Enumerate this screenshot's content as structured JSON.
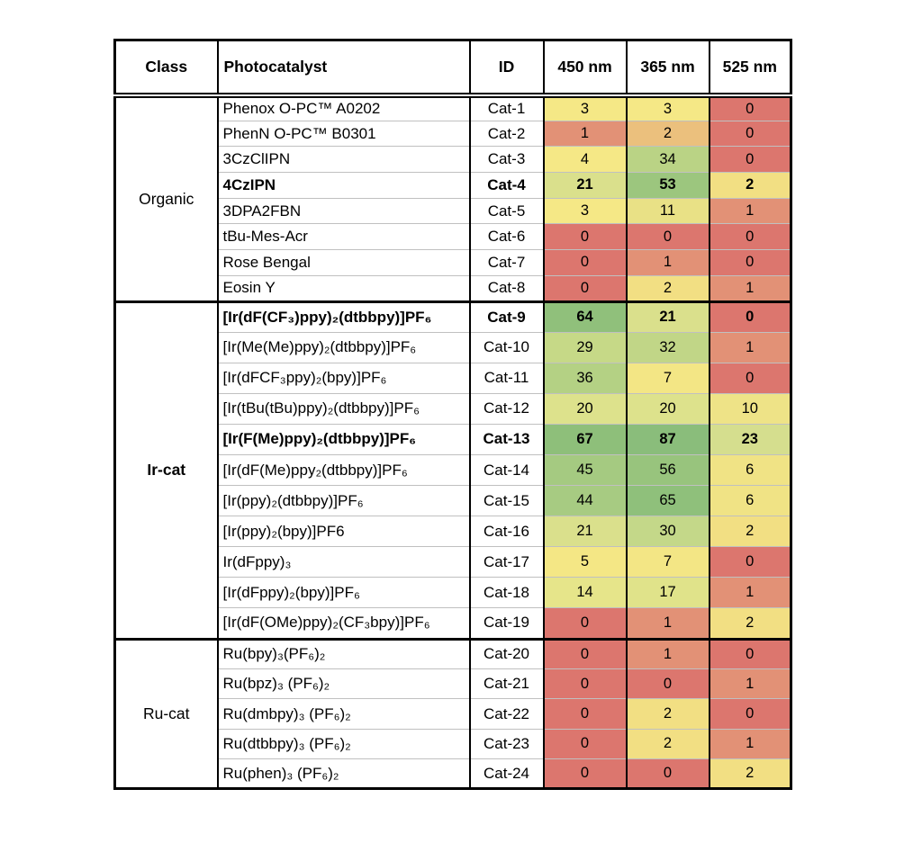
{
  "chart_data": {
    "type": "heatmap",
    "headers": [
      "Class",
      "Photocatalyst",
      "ID",
      "450 nm",
      "365 nm",
      "525 nm"
    ],
    "value_columns": [
      "450 nm",
      "365 nm",
      "525 nm"
    ],
    "color_scale": {
      "domain_min": 0,
      "domain_max": 87,
      "min_color": "#DC766E",
      "mid_color": "#F5E886",
      "max_color": "#8ABD7B"
    },
    "sections": [
      {
        "class": "Organic",
        "rows": [
          {
            "photocatalyst": "Phenox O-PC™ A0202",
            "id": "Cat-1",
            "values": [
              3,
              3,
              0
            ],
            "colors": [
              "#F5E886",
              "#F5E886",
              "#DC766E"
            ],
            "bold": false
          },
          {
            "photocatalyst": "PhenN O-PC™ B0301",
            "id": "Cat-2",
            "values": [
              1,
              2,
              0
            ],
            "colors": [
              "#E29176",
              "#EBC07D",
              "#DC766E"
            ],
            "bold": false
          },
          {
            "photocatalyst": "3CzClIPN",
            "id": "Cat-3",
            "values": [
              4,
              34,
              0
            ],
            "colors": [
              "#F5E886",
              "#BAD385",
              "#DC766E"
            ],
            "bold": false
          },
          {
            "photocatalyst": "4CzIPN",
            "id": "Cat-4",
            "values": [
              21,
              53,
              2
            ],
            "colors": [
              "#DAE08C",
              "#9CC67E",
              "#F2DF83"
            ],
            "bold": true
          },
          {
            "photocatalyst": "3DPA2FBN",
            "id": "Cat-5",
            "values": [
              3,
              11,
              1
            ],
            "colors": [
              "#F5E886",
              "#E9E186",
              "#E29176"
            ],
            "bold": false
          },
          {
            "photocatalyst": "tBu-Mes-Acr",
            "id": "Cat-6",
            "values": [
              0,
              0,
              0
            ],
            "colors": [
              "#DC766E",
              "#DC766E",
              "#DC766E"
            ],
            "bold": false
          },
          {
            "photocatalyst": "Rose Bengal",
            "id": "Cat-7",
            "values": [
              0,
              1,
              0
            ],
            "colors": [
              "#DC766E",
              "#E29176",
              "#DC766E"
            ],
            "bold": false
          },
          {
            "photocatalyst": "Eosin Y",
            "id": "Cat-8",
            "values": [
              0,
              2,
              1
            ],
            "colors": [
              "#DC766E",
              "#F2DF83",
              "#E29176"
            ],
            "bold": false
          }
        ]
      },
      {
        "class": "Ir-cat",
        "rows": [
          {
            "photocatalyst": "[Ir(dF(CF₃)ppy)₂(dtbbpy)]PF₆",
            "id": "Cat-9",
            "values": [
              64,
              21,
              0
            ],
            "colors": [
              "#90C07B",
              "#DAE08C",
              "#DC766E"
            ],
            "bold": true
          },
          {
            "photocatalyst": "[Ir(Me(Me)ppy)₂(dtbbpy)]PF₆",
            "id": "Cat-10",
            "values": [
              29,
              32,
              1
            ],
            "colors": [
              "#C6D987",
              "#C1D687",
              "#E29176"
            ],
            "bold": false
          },
          {
            "photocatalyst": "[Ir(dFCF₃ppy)₂(bpy)]PF₆",
            "id": "Cat-11",
            "values": [
              36,
              7,
              0
            ],
            "colors": [
              "#B4D184",
              "#F3E685",
              "#DC766E"
            ],
            "bold": false
          },
          {
            "photocatalyst": "[Ir(tBu(tBu)ppy)₂(dtbbpy)]PF₆",
            "id": "Cat-12",
            "values": [
              20,
              20,
              10
            ],
            "colors": [
              "#DDE28C",
              "#DDE28C",
              "#EEE387"
            ],
            "bold": false
          },
          {
            "photocatalyst": "[Ir(F(Me)ppy)₂(dtbbpy)]PF₆",
            "id": "Cat-13",
            "values": [
              67,
              87,
              23
            ],
            "colors": [
              "#8EBF7A",
              "#8ABD7B",
              "#D5DE8E"
            ],
            "bold": true
          },
          {
            "photocatalyst": "[Ir(dF(Me)ppy₂(dtbbpy)]PF₆",
            "id": "Cat-14",
            "values": [
              45,
              56,
              6
            ],
            "colors": [
              "#A5CA81",
              "#98C47D",
              "#F0E385"
            ],
            "bold": false
          },
          {
            "photocatalyst": "[Ir(ppy)₂(dtbbpy)]PF₆",
            "id": "Cat-15",
            "values": [
              44,
              65,
              6
            ],
            "colors": [
              "#A7CB82",
              "#8FC07B",
              "#F0E385"
            ],
            "bold": false
          },
          {
            "photocatalyst": "[Ir(ppy)₂(bpy)]PF6",
            "id": "Cat-16",
            "values": [
              21,
              30,
              2
            ],
            "colors": [
              "#DAE08C",
              "#C4D889",
              "#F2DF83"
            ],
            "bold": false
          },
          {
            "photocatalyst": "Ir(dFppy)₃",
            "id": "Cat-17",
            "values": [
              5,
              7,
              0
            ],
            "colors": [
              "#F4E785",
              "#F3E685",
              "#DC766E"
            ],
            "bold": false
          },
          {
            "photocatalyst": "[Ir(dFppy)₂(bpy)]PF₆",
            "id": "Cat-18",
            "values": [
              14,
              17,
              1
            ],
            "colors": [
              "#E6E58A",
              "#E0E38A",
              "#E29176"
            ],
            "bold": false
          },
          {
            "photocatalyst": "[Ir(dF(OMe)ppy)₂(CF₃bpy)]PF₆",
            "id": "Cat-19",
            "values": [
              0,
              1,
              2
            ],
            "colors": [
              "#DC766E",
              "#E29176",
              "#F2DF83"
            ],
            "bold": false
          }
        ]
      },
      {
        "class": "Ru-cat",
        "rows": [
          {
            "photocatalyst": "Ru(bpy)₃(PF₆)₂",
            "id": "Cat-20",
            "values": [
              0,
              1,
              0
            ],
            "colors": [
              "#DC766E",
              "#E29176",
              "#DC766E"
            ],
            "bold": false
          },
          {
            "photocatalyst": "Ru(bpz)₃ (PF₆)₂",
            "id": "Cat-21",
            "values": [
              0,
              0,
              1
            ],
            "colors": [
              "#DC766E",
              "#DC766E",
              "#E29176"
            ],
            "bold": false
          },
          {
            "photocatalyst": "Ru(dmbpy)₃ (PF₆)₂",
            "id": "Cat-22",
            "values": [
              0,
              2,
              0
            ],
            "colors": [
              "#DC766E",
              "#F2DF83",
              "#DC766E"
            ],
            "bold": false
          },
          {
            "photocatalyst": "Ru(dtbbpy)₃ (PF₆)₂",
            "id": "Cat-23",
            "values": [
              0,
              2,
              1
            ],
            "colors": [
              "#DC766E",
              "#F2DF83",
              "#E29176"
            ],
            "bold": false
          },
          {
            "photocatalyst": "Ru(phen)₃ (PF₆)₂",
            "id": "Cat-24",
            "values": [
              0,
              0,
              2
            ],
            "colors": [
              "#DC766E",
              "#DC766E",
              "#F2DF83"
            ],
            "bold": false
          }
        ]
      }
    ]
  }
}
